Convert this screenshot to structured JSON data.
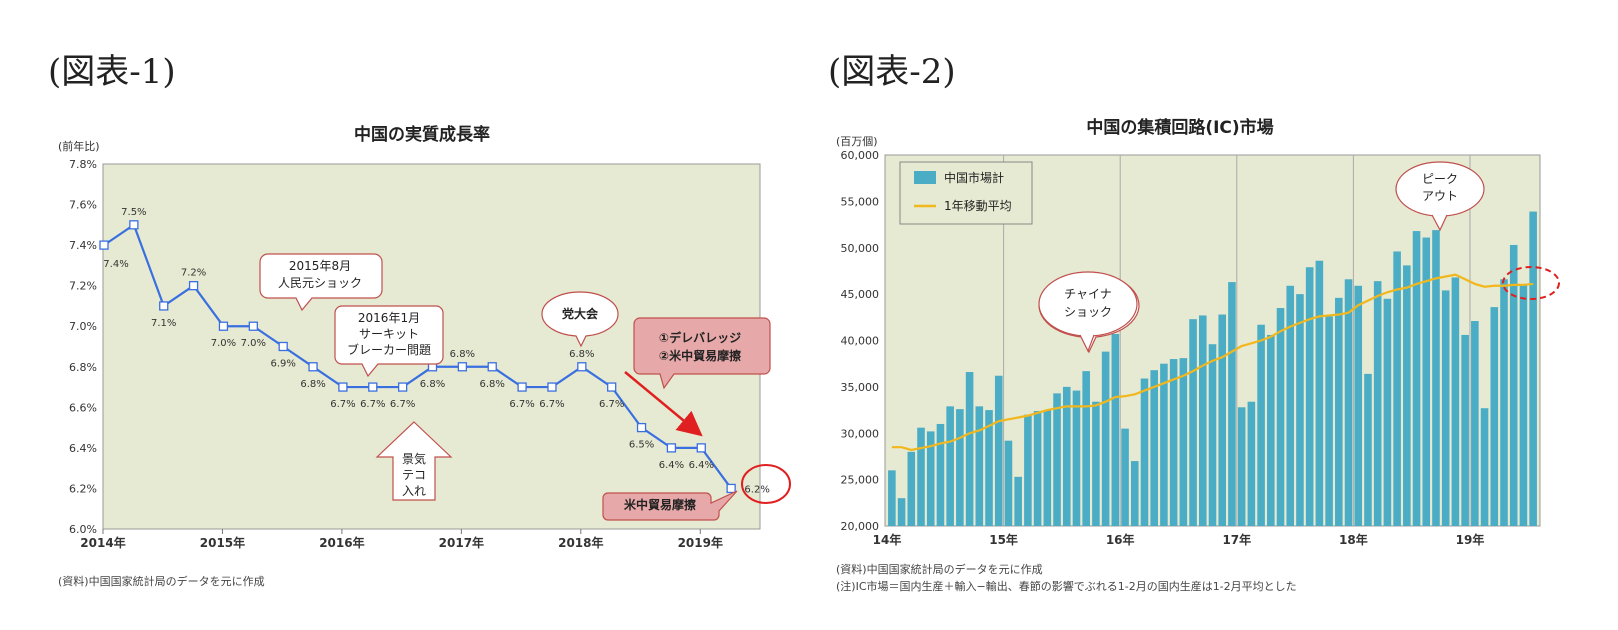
{
  "figures": {
    "fig1_label": "(図表-1)",
    "fig2_label": "(図表-2)"
  },
  "chart_data": [
    {
      "type": "line",
      "title": "中国の実質成長率",
      "unit_label": "(前年比)",
      "x": [
        "2014Q1",
        "2014Q2",
        "2014Q3",
        "2014Q4",
        "2015Q1",
        "2015Q2",
        "2015Q3",
        "2015Q4",
        "2016Q1",
        "2016Q2",
        "2016Q3",
        "2016Q4",
        "2017Q1",
        "2017Q2",
        "2017Q3",
        "2017Q4",
        "2018Q1",
        "2018Q2",
        "2018Q3",
        "2018Q4",
        "2019Q1",
        "2019Q2"
      ],
      "values": [
        7.4,
        7.5,
        7.1,
        7.2,
        7.0,
        7.0,
        6.9,
        6.8,
        6.7,
        6.7,
        6.7,
        6.8,
        6.8,
        6.8,
        6.7,
        6.7,
        6.8,
        6.7,
        6.5,
        6.4,
        6.4,
        6.2
      ],
      "data_labels": [
        "7.4%",
        "7.5%",
        "7.1%",
        "7.2%",
        "7.0%",
        "7.0%",
        "6.9%",
        "6.8%",
        "6.7%",
        "6.7%",
        "6.7%",
        "6.8%",
        "6.8%",
        "6.8%",
        "6.7%",
        "6.7%",
        "6.8%",
        "6.7%",
        "6.5%",
        "6.4%",
        "6.4%",
        "6.2%"
      ],
      "ylim": [
        6.0,
        7.8
      ],
      "y_ticks": [
        "6.0%",
        "6.2%",
        "6.4%",
        "6.6%",
        "6.8%",
        "7.0%",
        "7.2%",
        "7.4%",
        "7.6%",
        "7.8%"
      ],
      "x_tick_labels": [
        "2014年",
        "2015年",
        "2016年",
        "2017年",
        "2018年",
        "2019年"
      ],
      "series_color": "#3a6fe0",
      "annotations": {
        "a1_line1": "2015年8月",
        "a1_line2": "人民元ショック",
        "a2_line1": "2016年1月",
        "a2_line2": "サーキット",
        "a2_line3": "ブレーカー問題",
        "a3": "党大会",
        "a4_line1": "①デレバレッジ",
        "a4_line2": "②米中貿易摩擦",
        "a5_line1": "景気",
        "a5_line2": "テコ",
        "a5_line3": "入れ",
        "a6": "米中貿易摩擦"
      },
      "source": "(資料)中国国家統計局のデータを元に作成"
    },
    {
      "type": "bar",
      "title": "中国の集積回路(IC)市場",
      "unit_label": "(百万個)",
      "series": [
        {
          "name": "中国市場計",
          "values": [
            26000,
            23000,
            28000,
            30600,
            30200,
            31000,
            32900,
            32600,
            36600,
            32900,
            32500,
            36200,
            29200,
            25300,
            32000,
            32400,
            32500,
            34300,
            35000,
            34600,
            36700,
            33400,
            38800,
            40700,
            30500,
            27000,
            35900,
            36800,
            37500,
            38000,
            38100,
            42300,
            42700,
            39600,
            42800,
            46300,
            32800,
            33400,
            41700,
            40600,
            43500,
            45900,
            45000,
            47900,
            48600,
            42600,
            44600,
            46600,
            45900,
            36400,
            46400,
            44500,
            49600,
            48100,
            51800,
            51100,
            51900,
            45400,
            46800,
            40600,
            42100,
            32700,
            43600,
            46600,
            50300,
            46000,
            53900
          ]
        },
        {
          "name": "1年移動平均",
          "values": [
            28500,
            28500,
            28200,
            28400,
            28600,
            28900,
            29100,
            29500,
            30000,
            30300,
            30800,
            31300,
            31500,
            31700,
            31900,
            32200,
            32500,
            32700,
            32900,
            32900,
            32900,
            33000,
            33400,
            33900,
            34000,
            34200,
            34600,
            35000,
            35400,
            35800,
            36200,
            36700,
            37300,
            37800,
            38200,
            38800,
            39400,
            39700,
            40000,
            40400,
            41000,
            41500,
            41900,
            42300,
            42600,
            42700,
            42800,
            43000,
            43800,
            44300,
            44800,
            45200,
            45500,
            45700,
            46100,
            46400,
            46700,
            46900,
            47100,
            46600,
            46100,
            45800,
            45900,
            45900,
            46000,
            46000,
            46100
          ]
        }
      ],
      "ylim": [
        20000,
        60000
      ],
      "y_ticks": [
        "20,000",
        "25,000",
        "30,000",
        "35,000",
        "40,000",
        "45,000",
        "50,000",
        "55,000",
        "60,000"
      ],
      "x_tick_labels": [
        "14年",
        "15年",
        "16年",
        "17年",
        "18年",
        "19年"
      ],
      "bar_color": "#4badc5",
      "ma_color": "#f2b71d",
      "annotations": {
        "b1_line1": "チャイナ",
        "b1_line2": "ショック",
        "b2_line1": "ピーク",
        "b2_line2": "アウト"
      },
      "source_line1": "(資料)中国国家統計局のデータを元に作成",
      "source_line2": "(注)IC市場＝国内生産＋輸入−輸出、春節の影響でぶれる1-2月の国内生産は1-2月平均とした"
    }
  ]
}
